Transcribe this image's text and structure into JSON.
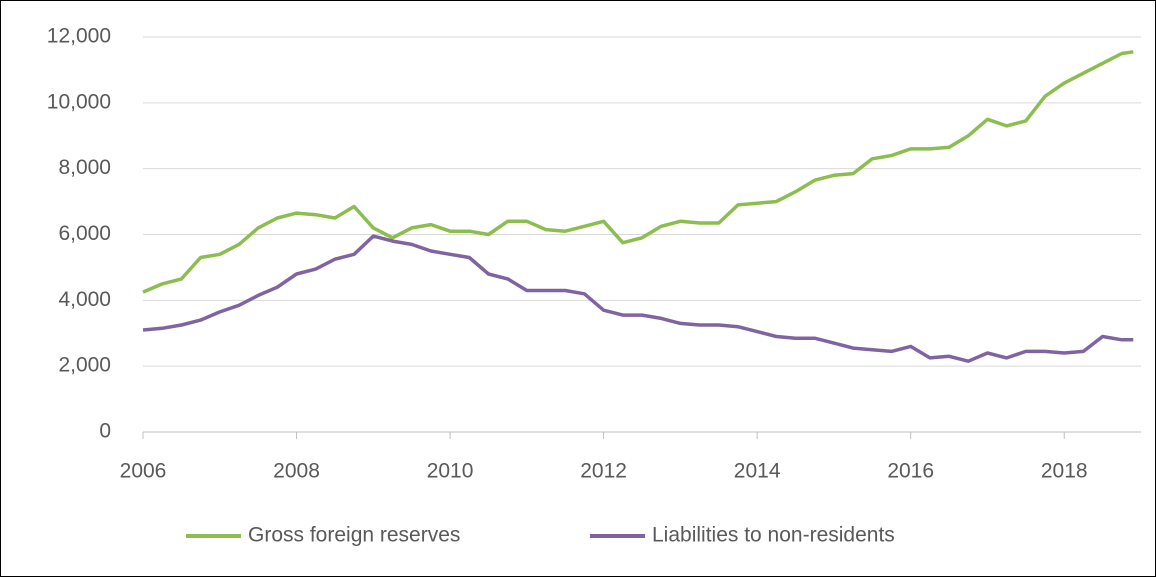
{
  "chart_data": {
    "type": "line",
    "x": [
      2006,
      2006.25,
      2006.5,
      2006.75,
      2007,
      2007.25,
      2007.5,
      2007.75,
      2008,
      2008.25,
      2008.5,
      2008.75,
      2009,
      2009.25,
      2009.5,
      2009.75,
      2010,
      2010.25,
      2010.5,
      2010.75,
      2011,
      2011.25,
      2011.5,
      2011.75,
      2012,
      2012.25,
      2012.5,
      2012.75,
      2013,
      2013.25,
      2013.5,
      2013.75,
      2014,
      2014.25,
      2014.5,
      2014.75,
      2015,
      2015.25,
      2015.5,
      2015.75,
      2016,
      2016.25,
      2016.5,
      2016.75,
      2017,
      2017.25,
      2017.5,
      2017.75,
      2018,
      2018.25,
      2018.5,
      2018.75,
      2018.9
    ],
    "series": [
      {
        "name": "Gross foreign reserves",
        "color": "#8cbd4f",
        "values": [
          4250,
          4500,
          4650,
          5300,
          5400,
          5700,
          6200,
          6500,
          6650,
          6600,
          6500,
          6850,
          6200,
          5900,
          6200,
          6300,
          6100,
          6100,
          6000,
          6400,
          6400,
          6150,
          6100,
          6250,
          6400,
          5750,
          5900,
          6250,
          6400,
          6350,
          6350,
          6900,
          6950,
          7000,
          7300,
          7650,
          7800,
          7850,
          8300,
          8400,
          8600,
          8600,
          8650,
          9000,
          9500,
          9300,
          9450,
          10200,
          10600,
          10900,
          11200,
          11500,
          11550
        ]
      },
      {
        "name": "Liabilities to non-residents",
        "color": "#8064a2",
        "values": [
          3100,
          3150,
          3250,
          3400,
          3650,
          3850,
          4150,
          4400,
          4800,
          4950,
          5250,
          5400,
          5950,
          5800,
          5700,
          5500,
          5400,
          5300,
          4800,
          4650,
          4300,
          4300,
          4300,
          4200,
          3700,
          3550,
          3550,
          3450,
          3300,
          3250,
          3250,
          3200,
          3050,
          2900,
          2850,
          2850,
          2700,
          2550,
          2500,
          2450,
          2600,
          2250,
          2300,
          2150,
          2400,
          2250,
          2450,
          2450,
          2400,
          2450,
          2900,
          2800,
          2800
        ]
      }
    ],
    "xlim": [
      2006,
      2019
    ],
    "xticks": [
      2006,
      2008,
      2010,
      2012,
      2014,
      2016,
      2018
    ],
    "ylim": [
      0,
      12000
    ],
    "yticks": [
      0,
      {
        "value": 2000,
        "label": "2,000"
      },
      {
        "value": 4000,
        "label": "4,000"
      },
      {
        "value": 6000,
        "label": "6,000"
      },
      {
        "value": 8000,
        "label": "8,000"
      },
      {
        "value": 10000,
        "label": "10,000"
      },
      {
        "value": 12000,
        "label": "12,000"
      }
    ],
    "grid": true,
    "legend": "bottom"
  }
}
